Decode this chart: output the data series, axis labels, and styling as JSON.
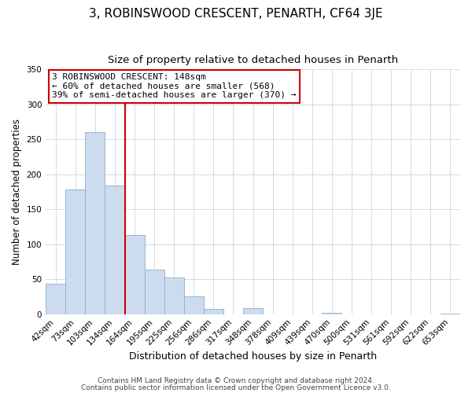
{
  "title": "3, ROBINSWOOD CRESCENT, PENARTH, CF64 3JE",
  "subtitle": "Size of property relative to detached houses in Penarth",
  "xlabel": "Distribution of detached houses by size in Penarth",
  "ylabel": "Number of detached properties",
  "bar_labels": [
    "42sqm",
    "73sqm",
    "103sqm",
    "134sqm",
    "164sqm",
    "195sqm",
    "225sqm",
    "256sqm",
    "286sqm",
    "317sqm",
    "348sqm",
    "378sqm",
    "409sqm",
    "439sqm",
    "470sqm",
    "500sqm",
    "531sqm",
    "561sqm",
    "592sqm",
    "622sqm",
    "653sqm"
  ],
  "bar_values": [
    44,
    178,
    260,
    184,
    113,
    64,
    52,
    25,
    8,
    0,
    9,
    0,
    0,
    0,
    2,
    0,
    0,
    0,
    0,
    0,
    1
  ],
  "bar_color": "#ccdcee",
  "bar_edge_color": "#8ab0cc",
  "vline_x": 3.5,
  "vline_color": "#cc0000",
  "annotation_line1": "3 ROBINSWOOD CRESCENT: 148sqm",
  "annotation_line2": "← 60% of detached houses are smaller (568)",
  "annotation_line3": "39% of semi-detached houses are larger (370) →",
  "annotation_box_color": "#ffffff",
  "annotation_box_edge": "#cc0000",
  "ylim": [
    0,
    350
  ],
  "yticks": [
    0,
    50,
    100,
    150,
    200,
    250,
    300,
    350
  ],
  "footer1": "Contains HM Land Registry data © Crown copyright and database right 2024.",
  "footer2": "Contains public sector information licensed under the Open Government Licence v3.0.",
  "background_color": "#ffffff",
  "grid_color": "#d0dce8",
  "title_fontsize": 11,
  "subtitle_fontsize": 9.5,
  "xlabel_fontsize": 9,
  "ylabel_fontsize": 8.5,
  "tick_fontsize": 7.5,
  "annotation_fontsize": 8,
  "footer_fontsize": 6.5
}
